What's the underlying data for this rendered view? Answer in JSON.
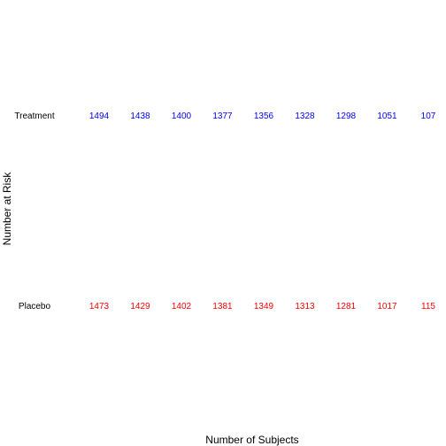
{
  "chart_data": {
    "type": "table",
    "title": "",
    "xlabel": "Number of Subjects",
    "ylabel": "Number at Risk",
    "grid": false,
    "series": [
      {
        "name": "Treatment",
        "color": "#0000ff",
        "values": [
          "1494",
          "1438",
          "1400",
          "1377",
          "1356",
          "1328",
          "1298",
          "1051",
          "107"
        ]
      },
      {
        "name": "Placebo",
        "color": "#ff0000",
        "values": [
          "1473",
          "1429",
          "1402",
          "1381",
          "1349",
          "1313",
          "1281",
          "1017",
          "115"
        ]
      }
    ]
  }
}
